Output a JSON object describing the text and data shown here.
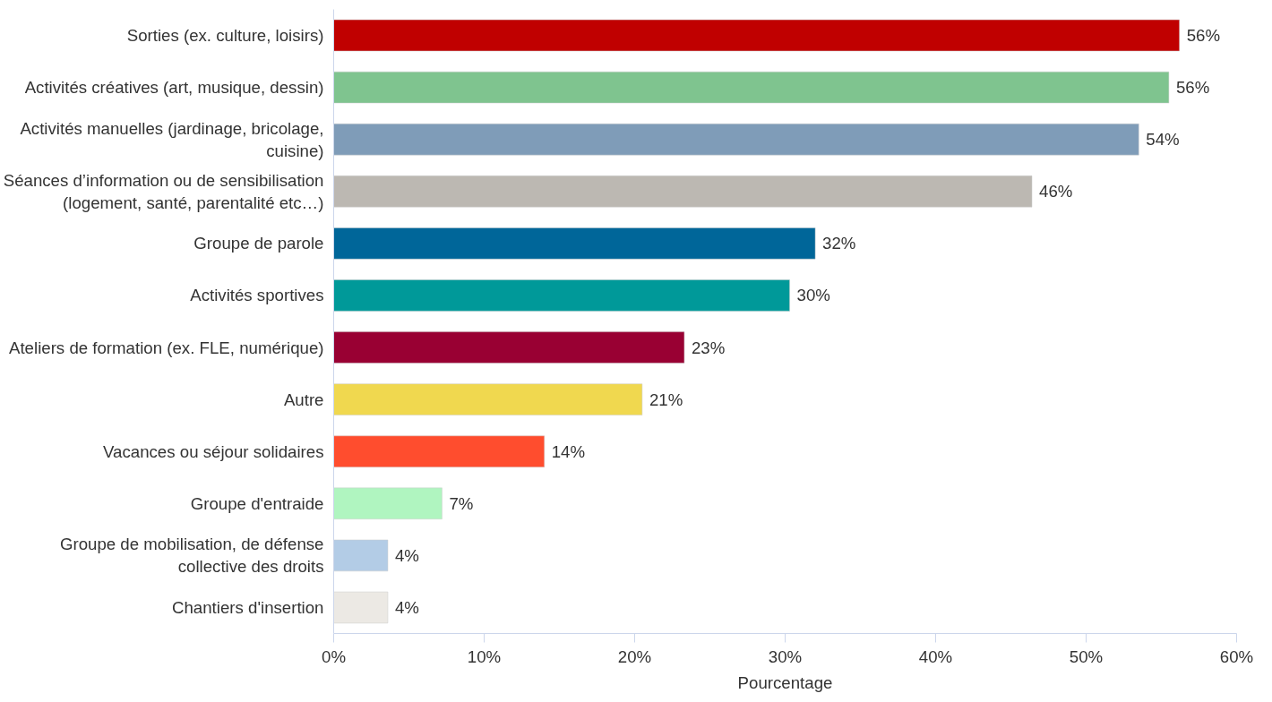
{
  "chart_data": {
    "type": "bar",
    "orientation": "horizontal",
    "xlabel": "Pourcentage",
    "categories": [
      "Sorties (ex. culture, loisirs)",
      "Activités créatives (art, musique, dessin)",
      "Activités manuelles (jardinage, bricolage,\ncuisine)",
      "Séances d’information ou de sensibilisation\n(logement, santé, parentalité etc…)",
      "Groupe de parole",
      "Activités sportives",
      "Ateliers de formation (ex. FLE, numérique)",
      "Autre",
      "Vacances ou séjour solidaires",
      "Groupe d'entraide",
      "Groupe de mobilisation, de défense\ncollective des droits",
      "Chantiers d'insertion"
    ],
    "values": [
      56.2,
      55.5,
      53.5,
      46.4,
      32.0,
      30.3,
      23.3,
      20.5,
      14.0,
      7.2,
      3.6,
      3.6
    ],
    "colors": [
      "#c00000",
      "#7fc48f",
      "#7f9cb8",
      "#bcb8b2",
      "#006699",
      "#009999",
      "#990033",
      "#f0d84f",
      "#ff4d2e",
      "#b0f5c0",
      "#b3cce6",
      "#ece9e4"
    ],
    "value_labels": [
      "56%",
      "56%",
      "54%",
      "46%",
      "32%",
      "30%",
      "23%",
      "21%",
      "14%",
      "7%",
      "4%",
      "4%"
    ],
    "xlim": [
      0,
      60
    ],
    "xticks": [
      {
        "value": 0,
        "label": "0%"
      },
      {
        "value": 10,
        "label": "10%"
      },
      {
        "value": 20,
        "label": "20%"
      },
      {
        "value": 30,
        "label": "30%"
      },
      {
        "value": 40,
        "label": "40%"
      },
      {
        "value": 50,
        "label": "50%"
      },
      {
        "value": 60,
        "label": "60%"
      }
    ],
    "grid": false
  }
}
